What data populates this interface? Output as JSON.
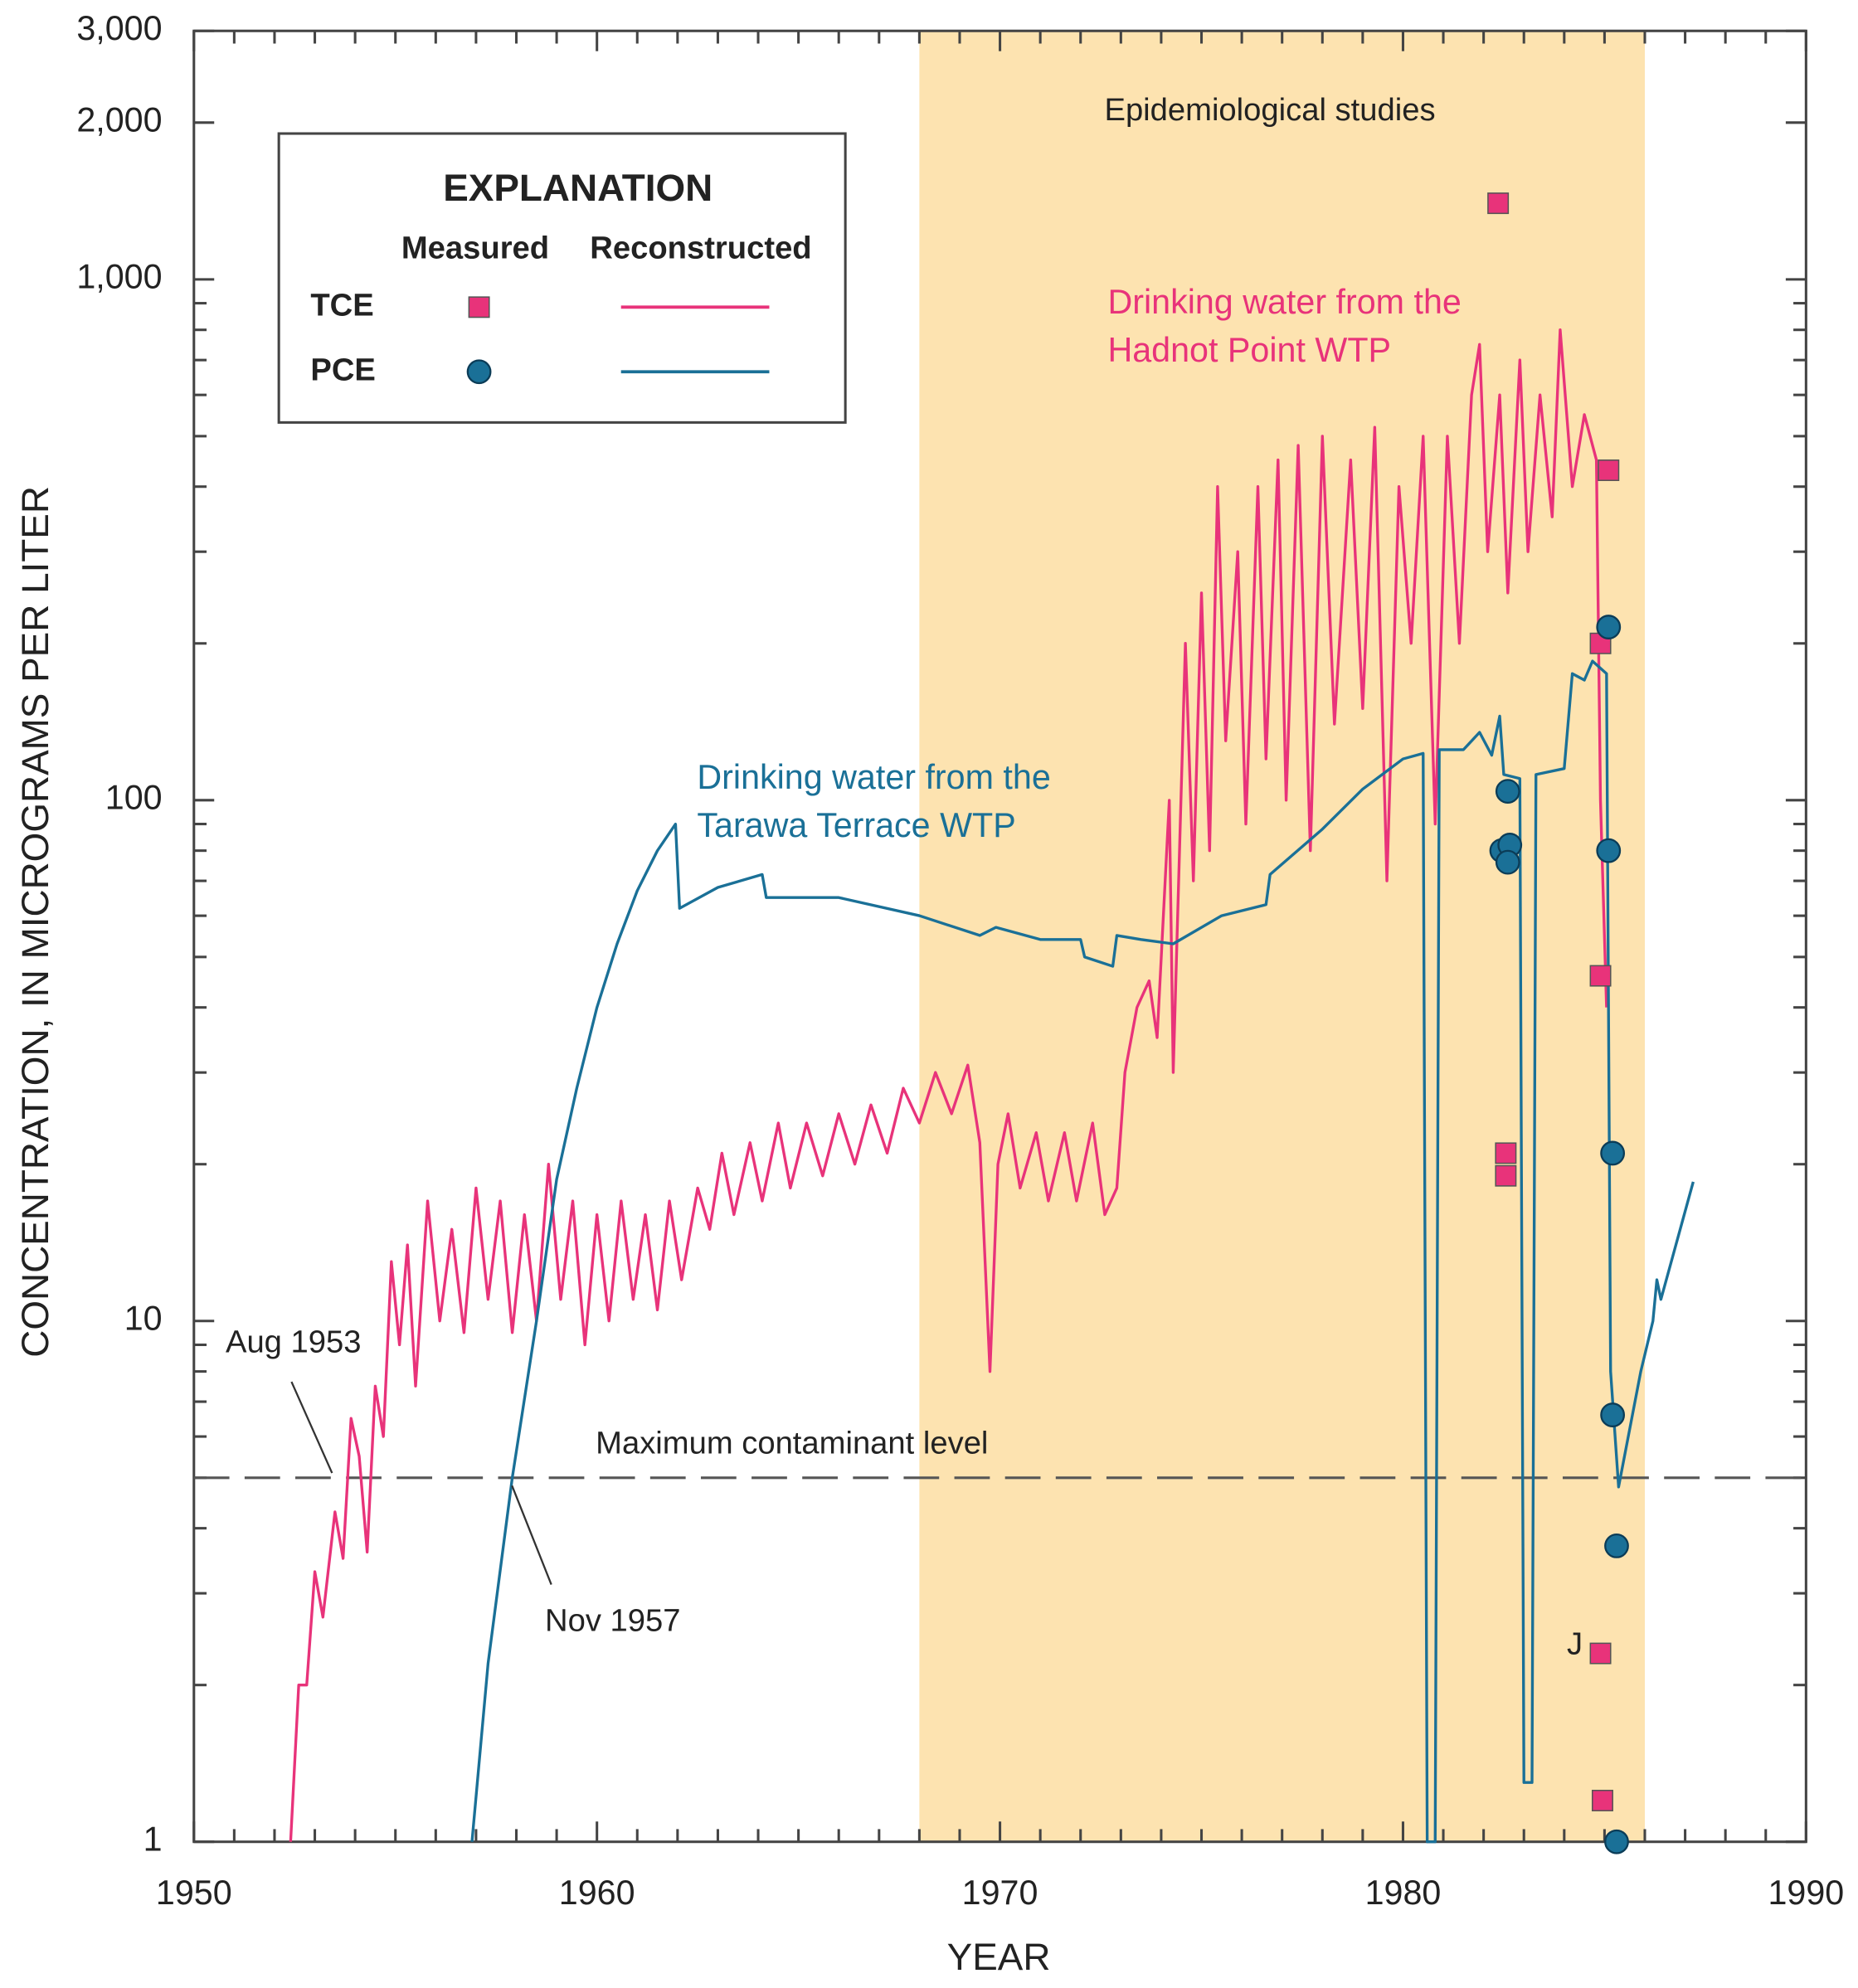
{
  "chart_data": {
    "type": "line",
    "xlabel": "YEAR",
    "ylabel": "CONCENTRATION, IN MICROGRAMS PER LITER",
    "log_y": true,
    "xlim": [
      1950,
      1990
    ],
    "xticks": [
      1950,
      1960,
      1970,
      1980,
      1990
    ],
    "xticks_minor": [
      1951,
      1952,
      1953,
      1954,
      1955,
      1956,
      1957,
      1958,
      1959,
      1961,
      1962,
      1963,
      1964,
      1965,
      1966,
      1967,
      1968,
      1969,
      1971,
      1972,
      1973,
      1974,
      1975,
      1976,
      1977,
      1978,
      1979,
      1981,
      1982,
      1983,
      1984,
      1985,
      1986,
      1987,
      1988,
      1989
    ],
    "ylim": [
      1,
      3000
    ],
    "yticks": [
      1,
      10,
      100,
      {
        "value": 1000,
        "label": "1,000"
      },
      {
        "value": 2000,
        "label": "2,000"
      },
      {
        "value": 3000,
        "label": "3,000"
      }
    ],
    "yticks_minor": [
      2,
      3,
      4,
      5,
      6,
      7,
      8,
      9,
      20,
      30,
      40,
      50,
      60,
      70,
      80,
      90,
      200,
      300,
      400,
      500,
      600,
      700,
      800,
      900
    ],
    "shaded_span": {
      "x": [
        1968,
        1986
      ],
      "label": "Epidemiological studies",
      "color": "#fde3b0"
    },
    "reference_line": {
      "value": 5,
      "label": "Maximum contaminant level"
    },
    "legend": {
      "title": "EXPLANATION",
      "columns": [
        "Measured",
        "Reconstructed"
      ]
    },
    "series": [
      {
        "name": "TCE",
        "color": "#e8337a",
        "label": [
          "Drinking water from the",
          "Hadnot Point WTP"
        ],
        "crossing_label": "Aug 1953",
        "x": [
          1952.4,
          1952.6,
          1952.8,
          1953.0,
          1953.2,
          1953.5,
          1953.7,
          1953.9,
          1954.1,
          1954.3,
          1954.5,
          1954.7,
          1954.9,
          1955.1,
          1955.3,
          1955.5,
          1955.8,
          1956.1,
          1956.4,
          1956.7,
          1957.0,
          1957.3,
          1957.6,
          1957.9,
          1958.2,
          1958.5,
          1958.8,
          1959.1,
          1959.4,
          1959.7,
          1960.0,
          1960.3,
          1960.6,
          1960.9,
          1961.2,
          1961.5,
          1961.8,
          1962.1,
          1962.5,
          1962.8,
          1963.1,
          1963.4,
          1963.8,
          1964.1,
          1964.5,
          1964.8,
          1965.2,
          1965.6,
          1966.0,
          1966.4,
          1966.8,
          1967.2,
          1967.6,
          1968.0,
          1968.4,
          1968.8,
          1969.2,
          1969.5,
          1969.75,
          1969.95,
          1970.2,
          1970.5,
          1970.9,
          1971.2,
          1971.6,
          1971.9,
          1972.3,
          1972.6,
          1972.9,
          1973.1,
          1973.4,
          1973.7,
          1973.9,
          1974.2,
          1974.3,
          1974.6,
          1974.8,
          1975.0,
          1975.2,
          1975.4,
          1975.6,
          1975.9,
          1976.1,
          1976.4,
          1976.6,
          1976.9,
          1977.1,
          1977.4,
          1977.7,
          1978.0,
          1978.3,
          1978.7,
          1979.0,
          1979.3,
          1979.6,
          1979.9,
          1980.2,
          1980.5,
          1980.8,
          1981.1,
          1981.4,
          1981.7,
          1981.9,
          1982.1,
          1982.4,
          1982.6,
          1982.9,
          1983.1,
          1983.4,
          1983.7,
          1983.9,
          1984.2,
          1984.5,
          1984.8,
          1984.9,
          1985.05
        ],
        "values": [
          1,
          2,
          2,
          3.3,
          2.7,
          4.3,
          3.5,
          6.5,
          5.5,
          3.6,
          7.5,
          6,
          13,
          9,
          14,
          7.5,
          17,
          10,
          15,
          9.5,
          18,
          11,
          17,
          9.5,
          16,
          10,
          20,
          11,
          17,
          9,
          16,
          10,
          17,
          11,
          16,
          10.5,
          17,
          12,
          18,
          15,
          21,
          16,
          22,
          17,
          24,
          18,
          24,
          19,
          25,
          20,
          26,
          21,
          28,
          24,
          30,
          25,
          31,
          22,
          8,
          20,
          25,
          18,
          23,
          17,
          23,
          17,
          24,
          16,
          18,
          30,
          40,
          45,
          35,
          100,
          30,
          200,
          70,
          250,
          80,
          400,
          130,
          300,
          90,
          400,
          120,
          450,
          100,
          480,
          80,
          500,
          140,
          450,
          150,
          520,
          70,
          400,
          200,
          500,
          90,
          500,
          200,
          600,
          750,
          300,
          600,
          250,
          700,
          300,
          600,
          350,
          800,
          400,
          550,
          450,
          100,
          40
        ],
        "measured": {
          "x": [
            1982.36,
            1985.1,
            1984.9,
            1984.9,
            1982.55,
            1982.55,
            1984.9,
            1984.95
          ],
          "values": [
            1400,
            430,
            200,
            46,
            21,
            19,
            2.3,
            1.2
          ],
          "qualifiers": [
            null,
            null,
            null,
            null,
            null,
            null,
            "J",
            null
          ]
        }
      },
      {
        "name": "PCE",
        "color": "#1a7097",
        "label": [
          "Drinking water from the",
          "Tarawa Terrace WTP"
        ],
        "crossing_label": "Nov 1957",
        "x": [
          1956.9,
          1957.3,
          1957.9,
          1958.5,
          1959,
          1959.5,
          1960,
          1960.5,
          1961,
          1961.5,
          1961.95,
          1962.05,
          1963,
          1964.1,
          1964.2,
          1966,
          1968,
          1969.5,
          1969.9,
          1971,
          1972,
          1972.1,
          1972.8,
          1972.9,
          1973.5,
          1974.3,
          1975.5,
          1976.6,
          1976.7,
          1978,
          1979,
          1980,
          1980.5,
          1980.6,
          1980.8,
          1980.9,
          1981.5,
          1981.9,
          1982.2,
          1982.4,
          1982.5,
          1982.9,
          1983.0,
          1983.2,
          1983.3,
          1984,
          1984.2,
          1984.5,
          1984.7,
          1985.05,
          1985.15,
          1985.35,
          1985.9,
          1986.2,
          1986.3,
          1986.4,
          1987.2
        ],
        "values": [
          1,
          2.2,
          5,
          10,
          18.7,
          28,
          40,
          53,
          67,
          80,
          90,
          62,
          68,
          72,
          65,
          65,
          60,
          55,
          57,
          54,
          54,
          50,
          48,
          55,
          54,
          53,
          60,
          63,
          72,
          88,
          105,
          120,
          123,
          1,
          1,
          125,
          125,
          135,
          122,
          145,
          112,
          110,
          1.3,
          1.3,
          112,
          115,
          175,
          170,
          185,
          175,
          8,
          4.8,
          8,
          10,
          12,
          11,
          18.5
        ],
        "measured": {
          "x": [
            1985.1,
            1982.6,
            1982.45,
            1982.65,
            1982.6,
            1985.1,
            1985.2,
            1985.2,
            1985.3,
            1985.3
          ],
          "values": [
            215,
            104,
            80,
            82,
            76,
            80,
            21,
            6.6,
            3.7,
            1.0
          ]
        }
      }
    ]
  }
}
